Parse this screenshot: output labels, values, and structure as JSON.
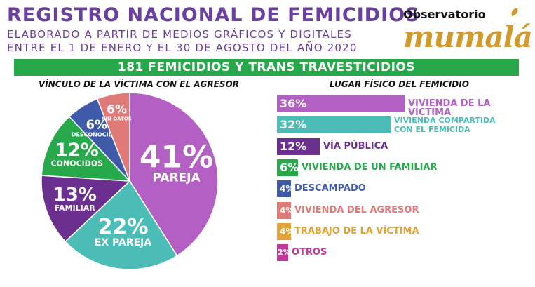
{
  "header": {
    "title": "REGISTRO NACIONAL DE FEMICIDIOS",
    "subtitle_line1": "ELABORADO A PARTIR DE MEDIOS GRÁFICOS Y DIGITALES",
    "subtitle_line2": "ENTRE EL 1 DE ENERO Y EL 30 DE AGOSTO DEL AÑO 2020",
    "logo_top": "Observatorio",
    "logo_main": "mumalá"
  },
  "banner": {
    "text": "181 FEMICIDIOS Y TRANS TRAVESTICIDIOS"
  },
  "chart_data": [
    {
      "type": "pie",
      "title": "VÍNCULO DE LA VÍCTIMA CON EL AGRESOR",
      "slices": [
        {
          "label": "PAREJA",
          "value": 41,
          "value_text": "41%",
          "color": "#b35fc4"
        },
        {
          "label": "EX PAREJA",
          "value": 22,
          "value_text": "22%",
          "color": "#4cbcb7"
        },
        {
          "label": "FAMILIAR",
          "value": 13,
          "value_text": "13%",
          "color": "#6b2f8f"
        },
        {
          "label": "CONOCIDOS",
          "value": 12,
          "value_text": "12%",
          "color": "#27a84a"
        },
        {
          "label": "DESCONOCIDOS",
          "value": 6,
          "value_text": "6%",
          "color": "#3f5aa8"
        },
        {
          "label": "SIN DATOS",
          "value": 6,
          "value_text": "6%",
          "color": "#e07a78"
        }
      ]
    },
    {
      "type": "bar",
      "orientation": "horizontal",
      "title": "LUGAR FÍSICO DEL FEMICIDIO",
      "bars": [
        {
          "label": "VIVIENDA DE LA VÍCTIMA",
          "value": 36,
          "value_text": "36%",
          "color": "#b35fc4"
        },
        {
          "label": "VIVIENDA COMPARTIDA CON EL FEMICIDA",
          "value": 32,
          "value_text": "32%",
          "color": "#4cbcb7"
        },
        {
          "label": "VÍA PÚBLICA",
          "value": 12,
          "value_text": "12%",
          "color": "#6b2f8f"
        },
        {
          "label": "VIVIENDA DE UN FAMILIAR",
          "value": 6,
          "value_text": "6%",
          "color": "#27a84a"
        },
        {
          "label": "DESCAMPADO",
          "value": 4,
          "value_text": "4%",
          "color": "#3f5aa8"
        },
        {
          "label": "VIVIENDA DEL AGRESOR",
          "value": 4,
          "value_text": "4%",
          "color": "#e07a78"
        },
        {
          "label": "TRABAJO DE LA VÍCTIMA",
          "value": 4,
          "value_text": "4%",
          "color": "#e0a43a"
        },
        {
          "label": "OTROS",
          "value": 2,
          "value_text": "2%",
          "color": "#c0399a"
        }
      ]
    }
  ]
}
